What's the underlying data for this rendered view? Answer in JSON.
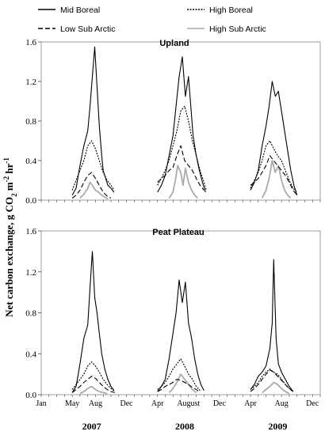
{
  "chart_data": {
    "type": "line",
    "ylabel": "Net carbon exchange, g CO2 m-2 hr-1",
    "ylabel_parts": {
      "main": "Net carbon exchange, g CO",
      "sub2": "2",
      "mid": " m",
      "sup": "-2",
      "tail": " hr",
      "sup2": "-1"
    },
    "legend": {
      "placement": "top",
      "entries": [
        {
          "name": "Mid Boreal",
          "color": "#000000",
          "dash": "solid"
        },
        {
          "name": "High Boreal",
          "color": "#000000",
          "dash": "dotted"
        },
        {
          "name": "Low Sub Arctic",
          "color": "#000000",
          "dash": "dashed"
        },
        {
          "name": "High Sub Arctic",
          "color": "#aaaaaa",
          "dash": "solid"
        }
      ]
    },
    "x_axis": {
      "unit": "month index from Jan 2007",
      "range": [
        0,
        36
      ],
      "month_ticks": [
        {
          "m": 0,
          "label": "Jan"
        },
        {
          "m": 4,
          "label": "May"
        },
        {
          "m": 7,
          "label": "Aug"
        },
        {
          "m": 11,
          "label": "Dec"
        },
        {
          "m": 15,
          "label": "Apr"
        },
        {
          "m": 19,
          "label": "August"
        },
        {
          "m": 23,
          "label": "Dec"
        },
        {
          "m": 27,
          "label": "Apr"
        },
        {
          "m": 31,
          "label": "Aug"
        },
        {
          "m": 35,
          "label": "Dec"
        }
      ],
      "year_labels": [
        {
          "m": 6,
          "label": "2007"
        },
        {
          "m": 18,
          "label": "2008"
        },
        {
          "m": 30,
          "label": "2009"
        }
      ]
    },
    "panels": [
      {
        "title": "Upland",
        "ylim": [
          0,
          1.6
        ],
        "yticks": [
          "0.0",
          "0.4",
          "0.8",
          "1.2",
          "1.6"
        ],
        "series": [
          {
            "name": "Mid Boreal",
            "seasons": [
              {
                "x": [
                  4.0,
                  4.5,
                  5.0,
                  5.5,
                  6.0,
                  6.3,
                  6.6,
                  6.9,
                  7.2,
                  7.5,
                  7.8,
                  8.0,
                  8.3,
                  8.6,
                  9.0,
                  9.4
                ],
                "y": [
                  0.05,
                  0.12,
                  0.35,
                  0.55,
                  0.7,
                  0.95,
                  1.25,
                  1.55,
                  1.15,
                  0.75,
                  0.45,
                  0.3,
                  0.22,
                  0.15,
                  0.12,
                  0.08
                ]
              },
              {
                "x": [
                  15.0,
                  15.5,
                  16.0,
                  16.5,
                  17.0,
                  17.4,
                  17.8,
                  18.2,
                  18.6,
                  19.0,
                  19.3,
                  19.6,
                  20.0,
                  20.4,
                  20.8,
                  21.2
                ],
                "y": [
                  0.08,
                  0.15,
                  0.25,
                  0.45,
                  0.65,
                  0.95,
                  1.25,
                  1.45,
                  1.05,
                  1.25,
                  0.95,
                  0.65,
                  0.45,
                  0.3,
                  0.18,
                  0.08
                ]
              },
              {
                "x": [
                  27.0,
                  27.5,
                  28.0,
                  28.5,
                  29.0,
                  29.4,
                  29.8,
                  30.2,
                  30.6,
                  31.0,
                  31.4,
                  31.8,
                  32.2,
                  32.6,
                  33.0
                ],
                "y": [
                  0.1,
                  0.18,
                  0.3,
                  0.55,
                  0.75,
                  0.95,
                  1.2,
                  1.05,
                  1.1,
                  0.9,
                  0.7,
                  0.5,
                  0.3,
                  0.15,
                  0.05
                ]
              }
            ]
          },
          {
            "name": "High Boreal",
            "seasons": [
              {
                "x": [
                  4.0,
                  4.5,
                  5.0,
                  5.5,
                  6.0,
                  6.5,
                  7.0,
                  7.5,
                  8.0,
                  8.5,
                  9.0,
                  9.4
                ],
                "y": [
                  0.1,
                  0.2,
                  0.3,
                  0.4,
                  0.55,
                  0.6,
                  0.52,
                  0.4,
                  0.28,
                  0.2,
                  0.15,
                  0.1
                ]
              },
              {
                "x": [
                  15.0,
                  15.5,
                  16.0,
                  16.5,
                  17.0,
                  17.5,
                  18.0,
                  18.5,
                  19.0,
                  19.5,
                  20.0,
                  20.5,
                  21.0,
                  21.3
                ],
                "y": [
                  0.15,
                  0.22,
                  0.3,
                  0.4,
                  0.55,
                  0.7,
                  0.9,
                  0.95,
                  0.8,
                  0.6,
                  0.45,
                  0.3,
                  0.18,
                  0.1
                ]
              },
              {
                "x": [
                  27.0,
                  27.5,
                  28.0,
                  28.5,
                  29.0,
                  29.5,
                  30.0,
                  30.5,
                  31.0,
                  31.5,
                  32.0,
                  32.5,
                  33.0
                ],
                "y": [
                  0.12,
                  0.2,
                  0.28,
                  0.4,
                  0.55,
                  0.6,
                  0.52,
                  0.45,
                  0.4,
                  0.3,
                  0.2,
                  0.12,
                  0.08
                ]
              }
            ]
          },
          {
            "name": "Low Sub Arctic",
            "seasons": [
              {
                "x": [
                  4.0,
                  4.5,
                  5.0,
                  5.5,
                  6.0,
                  6.5,
                  7.0,
                  7.5,
                  8.0,
                  8.5,
                  9.0
                ],
                "y": [
                  0.02,
                  0.05,
                  0.1,
                  0.18,
                  0.25,
                  0.28,
                  0.22,
                  0.15,
                  0.08,
                  0.04,
                  0.02
                ]
              },
              {
                "x": [
                  15.0,
                  15.5,
                  16.0,
                  16.5,
                  17.0,
                  17.5,
                  18.0,
                  18.5,
                  19.0,
                  19.5,
                  20.0,
                  20.5,
                  21.0
                ],
                "y": [
                  0.18,
                  0.22,
                  0.25,
                  0.3,
                  0.33,
                  0.45,
                  0.55,
                  0.4,
                  0.35,
                  0.3,
                  0.22,
                  0.15,
                  0.1
                ]
              },
              {
                "x": [
                  27.0,
                  27.5,
                  28.0,
                  28.5,
                  29.0,
                  29.5,
                  30.0,
                  30.5,
                  31.0,
                  31.5,
                  32.0,
                  32.5,
                  33.0
                ],
                "y": [
                  0.15,
                  0.18,
                  0.22,
                  0.28,
                  0.35,
                  0.45,
                  0.4,
                  0.35,
                  0.3,
                  0.25,
                  0.18,
                  0.1,
                  0.05
                ]
              }
            ]
          },
          {
            "name": "High Sub Arctic",
            "seasons": [
              {
                "x": [
                  5.0,
                  5.5,
                  6.0,
                  6.3,
                  6.6,
                  7.0,
                  7.4,
                  7.8,
                  8.2,
                  8.6
                ],
                "y": [
                  0.02,
                  0.06,
                  0.12,
                  0.18,
                  0.15,
                  0.1,
                  0.08,
                  0.05,
                  0.03,
                  0.01
                ]
              },
              {
                "x": [
                  16.5,
                  17.0,
                  17.3,
                  17.6,
                  18.0,
                  18.3,
                  18.6,
                  19.0,
                  19.4,
                  19.8,
                  20.2
                ],
                "y": [
                  0.02,
                  0.08,
                  0.2,
                  0.35,
                  0.28,
                  0.15,
                  0.32,
                  0.18,
                  0.1,
                  0.05,
                  0.02
                ]
              },
              {
                "x": [
                  28.5,
                  29.0,
                  29.4,
                  29.8,
                  30.2,
                  30.6,
                  31.0,
                  31.4,
                  31.8,
                  32.2
                ],
                "y": [
                  0.02,
                  0.1,
                  0.22,
                  0.4,
                  0.28,
                  0.35,
                  0.2,
                  0.1,
                  0.05,
                  0.02
                ]
              }
            ]
          }
        ]
      },
      {
        "title": "Peat Plateau",
        "ylim": [
          0,
          1.6
        ],
        "yticks": [
          "0.0",
          "0.4",
          "0.8",
          "1.2",
          "1.6"
        ],
        "series": [
          {
            "name": "Mid Boreal",
            "seasons": [
              {
                "x": [
                  4.0,
                  4.5,
                  5.0,
                  5.5,
                  6.0,
                  6.3,
                  6.6,
                  6.9,
                  7.2,
                  7.5,
                  7.8,
                  8.2,
                  8.6,
                  9.0,
                  9.4
                ],
                "y": [
                  0.02,
                  0.08,
                  0.3,
                  0.55,
                  0.68,
                  1.05,
                  1.4,
                  0.95,
                  0.8,
                  0.6,
                  0.4,
                  0.25,
                  0.15,
                  0.08,
                  0.04
                ]
              },
              {
                "x": [
                  15.0,
                  15.5,
                  16.0,
                  16.5,
                  17.0,
                  17.4,
                  17.8,
                  18.2,
                  18.6,
                  19.0,
                  19.4,
                  19.8,
                  20.2,
                  20.6,
                  21.0
                ],
                "y": [
                  0.03,
                  0.08,
                  0.15,
                  0.35,
                  0.6,
                  0.8,
                  1.12,
                  0.9,
                  1.1,
                  0.7,
                  0.55,
                  0.35,
                  0.2,
                  0.1,
                  0.04
                ]
              },
              {
                "x": [
                  27.0,
                  27.5,
                  28.0,
                  28.5,
                  29.0,
                  29.5,
                  29.8,
                  30.0,
                  30.3,
                  30.6,
                  31.0,
                  31.5,
                  32.0,
                  32.5
                ],
                "y": [
                  0.05,
                  0.1,
                  0.18,
                  0.22,
                  0.28,
                  0.45,
                  0.7,
                  1.32,
                  0.55,
                  0.3,
                  0.22,
                  0.15,
                  0.08,
                  0.03
                ]
              }
            ]
          },
          {
            "name": "High Boreal",
            "seasons": [
              {
                "x": [
                  4.0,
                  4.5,
                  5.0,
                  5.5,
                  6.0,
                  6.5,
                  7.0,
                  7.5,
                  8.0,
                  8.5,
                  9.0,
                  9.5
                ],
                "y": [
                  0.05,
                  0.1,
                  0.15,
                  0.2,
                  0.28,
                  0.32,
                  0.28,
                  0.22,
                  0.15,
                  0.1,
                  0.06,
                  0.03
                ]
              },
              {
                "x": [
                  15.0,
                  15.5,
                  16.0,
                  16.5,
                  17.0,
                  17.5,
                  18.0,
                  18.5,
                  19.0,
                  19.5,
                  20.0,
                  20.5
                ],
                "y": [
                  0.05,
                  0.08,
                  0.12,
                  0.18,
                  0.25,
                  0.3,
                  0.35,
                  0.28,
                  0.2,
                  0.15,
                  0.08,
                  0.04
                ]
              },
              {
                "x": [
                  27.0,
                  27.5,
                  28.0,
                  28.5,
                  29.0,
                  29.5,
                  30.0,
                  30.5,
                  31.0,
                  31.5,
                  32.0,
                  32.5
                ],
                "y": [
                  0.05,
                  0.08,
                  0.12,
                  0.18,
                  0.22,
                  0.25,
                  0.22,
                  0.2,
                  0.15,
                  0.1,
                  0.06,
                  0.03
                ]
              }
            ]
          },
          {
            "name": "Low Sub Arctic",
            "seasons": [
              {
                "x": [
                  4.0,
                  4.5,
                  5.0,
                  5.5,
                  6.0,
                  6.5,
                  7.0,
                  7.5,
                  8.0,
                  8.5,
                  9.0,
                  9.5
                ],
                "y": [
                  0.02,
                  0.05,
                  0.08,
                  0.12,
                  0.15,
                  0.18,
                  0.16,
                  0.12,
                  0.08,
                  0.05,
                  0.03,
                  0.02
                ]
              },
              {
                "x": [
                  15.0,
                  15.5,
                  16.0,
                  16.5,
                  17.0,
                  17.5,
                  18.0,
                  18.5,
                  19.0,
                  19.5,
                  20.0,
                  20.5
                ],
                "y": [
                  0.03,
                  0.05,
                  0.08,
                  0.1,
                  0.12,
                  0.15,
                  0.14,
                  0.12,
                  0.1,
                  0.07,
                  0.05,
                  0.02
                ]
              },
              {
                "x": [
                  27.0,
                  27.5,
                  28.0,
                  28.5,
                  29.0,
                  29.5,
                  30.0,
                  30.5,
                  31.0,
                  31.5,
                  32.0,
                  32.5
                ],
                "y": [
                  0.03,
                  0.06,
                  0.1,
                  0.15,
                  0.2,
                  0.24,
                  0.22,
                  0.18,
                  0.14,
                  0.1,
                  0.06,
                  0.03
                ]
              }
            ]
          },
          {
            "name": "High Sub Arctic",
            "seasons": [
              {
                "x": [
                  5.0,
                  5.5,
                  6.0,
                  6.5,
                  7.0,
                  7.5,
                  8.0,
                  8.5
                ],
                "y": [
                  0.01,
                  0.03,
                  0.06,
                  0.08,
                  0.05,
                  0.03,
                  0.02,
                  0.01
                ]
              },
              {
                "x": [
                  16.5,
                  17.0,
                  17.5,
                  18.0,
                  18.5,
                  19.0,
                  19.5,
                  20.0
                ],
                "y": [
                  0.02,
                  0.06,
                  0.12,
                  0.2,
                  0.15,
                  0.1,
                  0.05,
                  0.02
                ]
              },
              {
                "x": [
                  28.5,
                  29.0,
                  29.5,
                  30.0,
                  30.5,
                  31.0,
                  31.5,
                  32.0
                ],
                "y": [
                  0.02,
                  0.05,
                  0.08,
                  0.12,
                  0.1,
                  0.06,
                  0.03,
                  0.01
                ]
              }
            ]
          }
        ]
      }
    ]
  }
}
